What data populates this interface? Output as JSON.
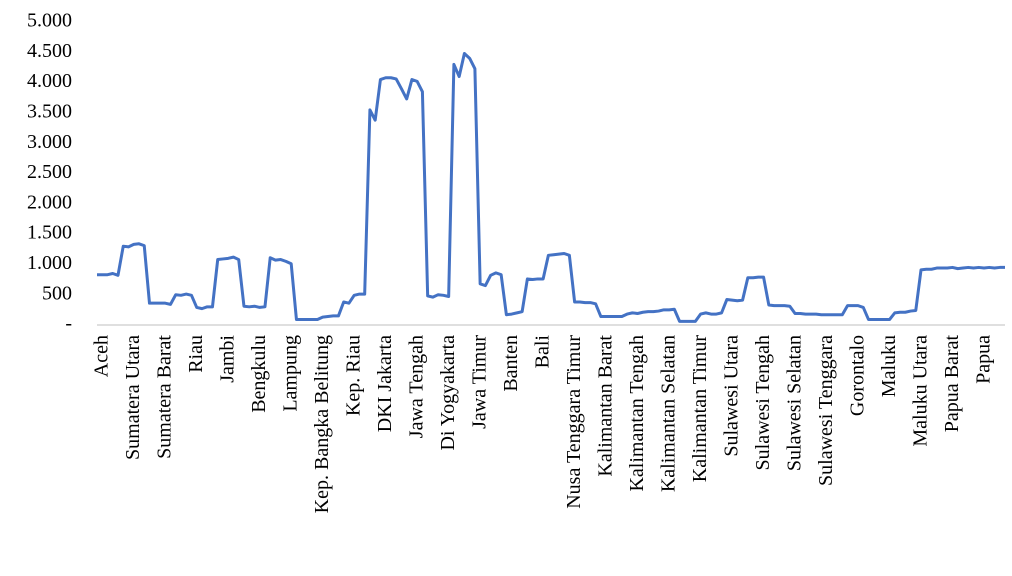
{
  "chart_data": {
    "type": "line",
    "categories": [
      "Aceh",
      null,
      null,
      null,
      null,
      null,
      "Sumatera Utara",
      null,
      null,
      null,
      null,
      null,
      "Sumatera Barat",
      null,
      null,
      null,
      null,
      null,
      "Riau",
      null,
      null,
      null,
      null,
      null,
      "Jambi",
      null,
      null,
      null,
      null,
      null,
      "Bengkulu",
      null,
      null,
      null,
      null,
      null,
      "Lampung",
      null,
      null,
      null,
      null,
      null,
      "Kep. Bangka Belitung",
      null,
      null,
      null,
      null,
      null,
      "Kep. Riau",
      null,
      null,
      null,
      null,
      null,
      "DKI Jakarta",
      null,
      null,
      null,
      null,
      null,
      "Jawa Tengah",
      null,
      null,
      null,
      null,
      null,
      "Di Yogyakarta",
      null,
      null,
      null,
      null,
      null,
      "Jawa Timur",
      null,
      null,
      null,
      null,
      null,
      "Banten",
      null,
      null,
      null,
      null,
      null,
      "Bali",
      null,
      null,
      null,
      null,
      null,
      "Nusa Tenggara Timur",
      null,
      null,
      null,
      null,
      null,
      "Kalimantan Barat",
      null,
      null,
      null,
      null,
      null,
      "Kalimantan Tengah",
      null,
      null,
      null,
      null,
      null,
      "Kalimantan Selatan",
      null,
      null,
      null,
      null,
      null,
      "Kalimantan Timur",
      null,
      null,
      null,
      null,
      null,
      "Sulawesi Utara",
      null,
      null,
      null,
      null,
      null,
      "Sulawesi Tengah",
      null,
      null,
      null,
      null,
      null,
      "Sulawesi Selatan",
      null,
      null,
      null,
      null,
      null,
      "Sulawesi Tenggara",
      null,
      null,
      null,
      null,
      null,
      "Gorontalo",
      null,
      null,
      null,
      null,
      null,
      "Maluku",
      null,
      null,
      null,
      null,
      null,
      "Maluku Utara",
      null,
      null,
      null,
      null,
      null,
      "Papua Barat",
      null,
      null,
      null,
      null,
      null,
      "Papua",
      null,
      null,
      null,
      null,
      null
    ],
    "series": [
      {
        "color": "#4472c4",
        "values": [
          830,
          830,
          830,
          850,
          820,
          1300,
          1290,
          1330,
          1340,
          1310,
          360,
          360,
          360,
          360,
          340,
          500,
          490,
          510,
          490,
          290,
          270,
          300,
          300,
          1080,
          1090,
          1100,
          1120,
          1080,
          310,
          300,
          310,
          290,
          300,
          1110,
          1070,
          1080,
          1050,
          1010,
          90,
          90,
          90,
          90,
          90,
          130,
          140,
          150,
          150,
          380,
          360,
          490,
          510,
          510,
          3550,
          3380,
          4050,
          4080,
          4080,
          4060,
          3900,
          3730,
          4050,
          4020,
          3850,
          480,
          460,
          500,
          490,
          470,
          4300,
          4100,
          4480,
          4400,
          4230,
          680,
          650,
          820,
          860,
          830,
          170,
          180,
          200,
          220,
          760,
          750,
          760,
          760,
          1150,
          1160,
          1170,
          1180,
          1150,
          380,
          380,
          370,
          370,
          350,
          140,
          140,
          140,
          140,
          140,
          180,
          200,
          190,
          210,
          220,
          220,
          230,
          250,
          250,
          260,
          60,
          60,
          60,
          60,
          180,
          200,
          180,
          180,
          200,
          420,
          410,
          400,
          410,
          780,
          780,
          790,
          790,
          330,
          320,
          320,
          320,
          310,
          190,
          190,
          180,
          180,
          180,
          170,
          170,
          170,
          170,
          170,
          320,
          320,
          320,
          290,
          90,
          90,
          90,
          90,
          90,
          200,
          210,
          210,
          230,
          240,
          910,
          920,
          920,
          940,
          940,
          940,
          950,
          930,
          940,
          950,
          940,
          950,
          940,
          950,
          940,
          950,
          950
        ]
      }
    ],
    "ylim": [
      0,
      5000
    ],
    "yticks": [
      {
        "value": 0,
        "label": "-"
      },
      500,
      {
        "value": 1000,
        "label": "1.000"
      },
      {
        "value": 1500,
        "label": "1.500"
      },
      {
        "value": 2000,
        "label": "2.000"
      },
      {
        "value": 2500,
        "label": "2.500"
      },
      {
        "value": 3000,
        "label": "3.000"
      },
      {
        "value": 3500,
        "label": "3.500"
      },
      {
        "value": 4000,
        "label": "4.000"
      },
      {
        "value": 4500,
        "label": "4.500"
      },
      {
        "value": 5000,
        "label": "5.000"
      }
    ]
  }
}
